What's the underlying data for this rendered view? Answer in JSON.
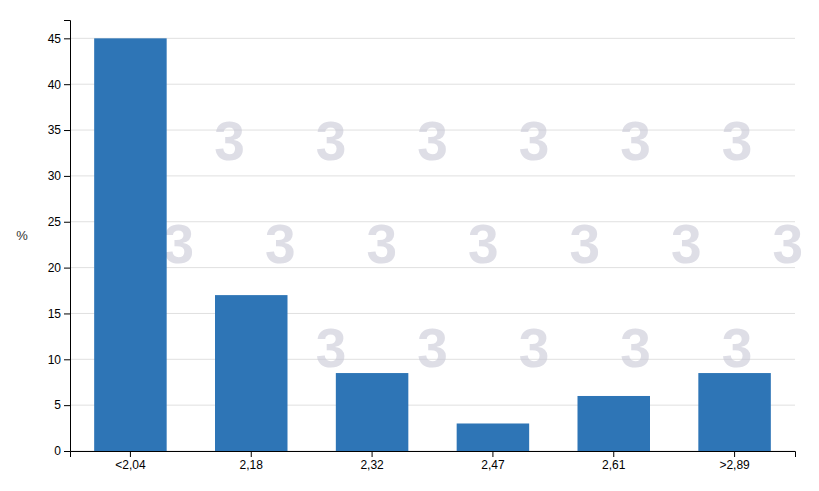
{
  "chart_data": {
    "type": "bar",
    "ylabel": "%",
    "categories": [
      "<2,04",
      "2,18",
      "2,32",
      "2,47",
      "2,61",
      ">2,89"
    ],
    "values": [
      45,
      17,
      8.5,
      3,
      6,
      8.5
    ],
    "color": "#2E75B6",
    "ylim": [
      0,
      47
    ],
    "yticks": [
      0,
      5,
      10,
      15,
      20,
      25,
      30,
      35,
      40,
      45
    ],
    "grid": true,
    "annotations": [
      "3"
    ]
  }
}
